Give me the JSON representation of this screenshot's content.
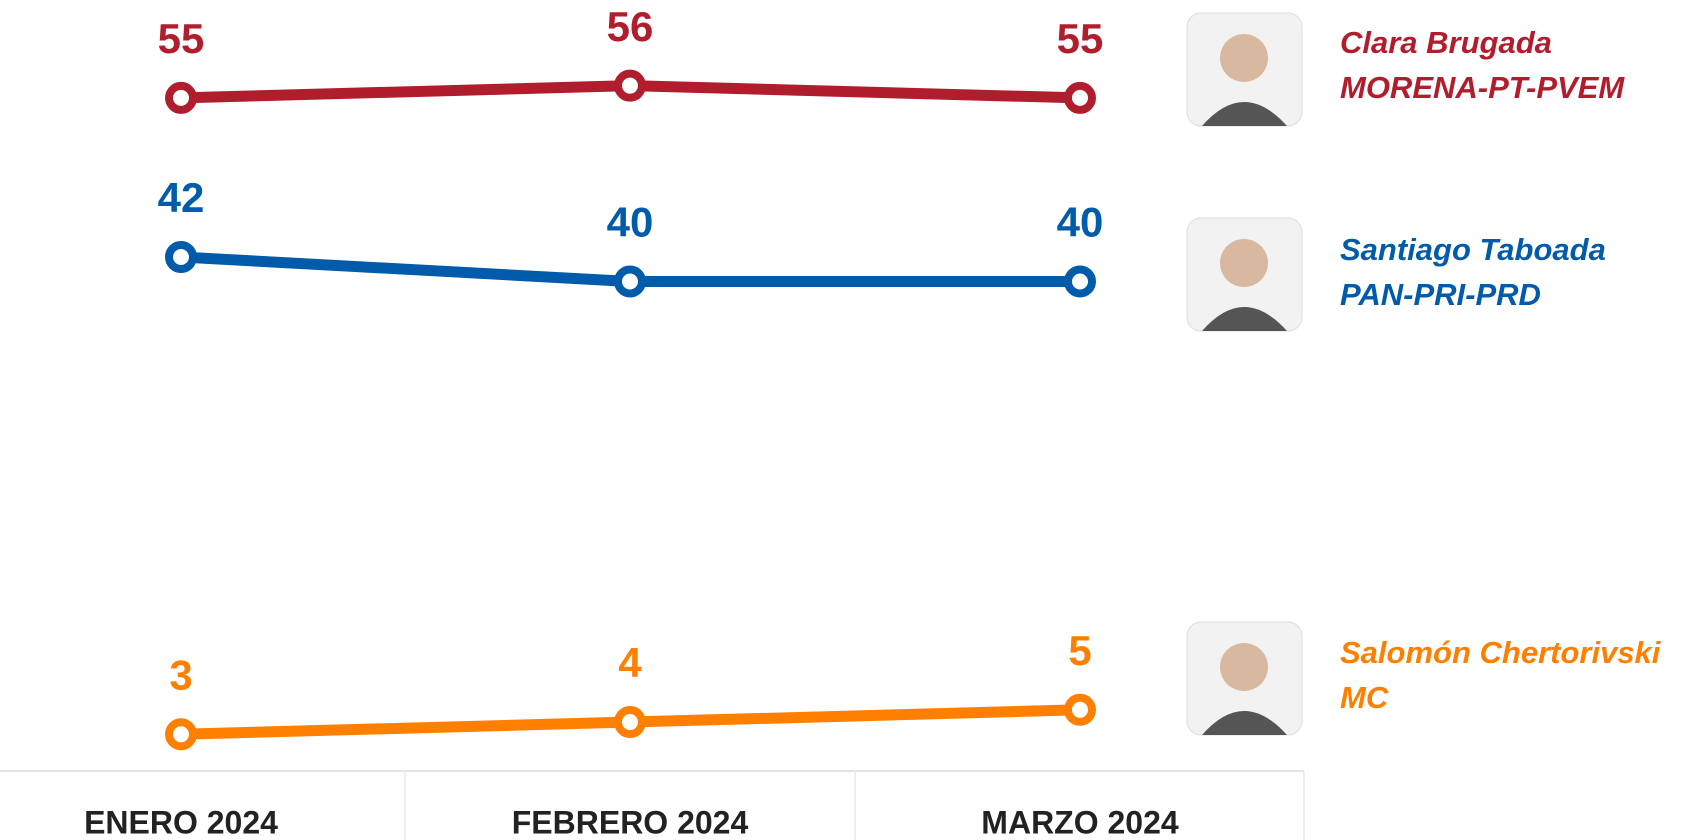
{
  "chart_data": {
    "type": "line",
    "categories": [
      "ENERO 2024",
      "FEBRERO 2024",
      "MARZO 2024"
    ],
    "series": [
      {
        "name": "Clara Brugada",
        "party": "MORENA-PT-PVEM",
        "color": "#b01e2d",
        "values": [
          55,
          56,
          55
        ]
      },
      {
        "name": "Santiago Taboada",
        "party": "PAN-PRI-PRD",
        "color": "#005baa",
        "values": [
          42,
          40,
          40
        ]
      },
      {
        "name": "Salomón Chertorivski",
        "party": "MC",
        "color": "#ff8000",
        "values": [
          3,
          4,
          5
        ]
      }
    ],
    "ylim": [
      0,
      63
    ]
  }
}
